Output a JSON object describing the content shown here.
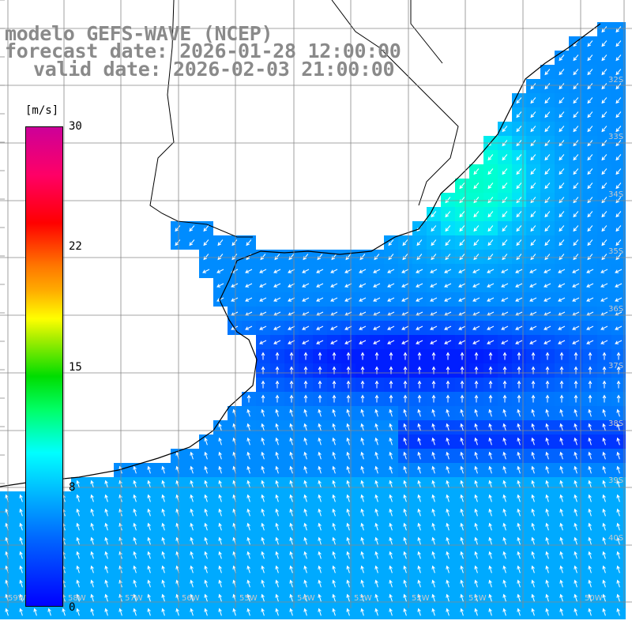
{
  "title": {
    "line1": "modelo GEFS-WAVE (NCEP)",
    "line2": "forecast date: 2026-01-28 12:00:00",
    "line3": "valid date: 2026-02-03 21:00:00"
  },
  "colorbar": {
    "units": "[m/s]",
    "ticks": [
      "30",
      "22",
      "15",
      "8",
      "0"
    ],
    "tick_values": [
      30,
      22,
      15,
      8,
      0
    ],
    "range": [
      0,
      30
    ],
    "colors": [
      "#0000ff",
      "#0066ff",
      "#00bbff",
      "#00ffff",
      "#00ff66",
      "#00dd00",
      "#aaee00",
      "#ffff00",
      "#ffaa00",
      "#ff7700",
      "#ff0000",
      "#ff0066",
      "#cc0099"
    ]
  },
  "lat_labels": [
    "32S",
    "33S",
    "34S",
    "35S",
    "36S",
    "37S",
    "38S",
    "39S",
    "40S"
  ],
  "lon_labels": [
    "59W",
    "58W",
    "57W",
    "56W",
    "55W",
    "54W",
    "53W",
    "52W",
    "51W",
    "50W"
  ],
  "colors": {
    "land": "#ffffff",
    "coastline": "#000000",
    "grid": "#888888",
    "title_text": "#8a8a8a",
    "arrow": "#ffffff"
  }
}
